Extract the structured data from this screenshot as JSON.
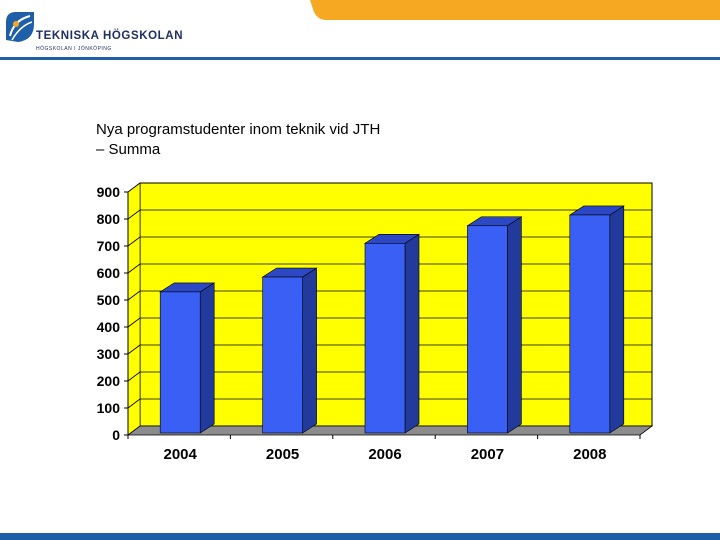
{
  "header": {
    "logo_name": "TEKNISKA HÖGSKOLAN",
    "logo_sub": "HÖGSKOLAN I JÖNKÖPING"
  },
  "slide": {
    "title_line1": "Nya programstudenter inom teknik vid JTH",
    "title_line2": "– Summa"
  },
  "colors": {
    "bar_face": "#3a5ff5",
    "bar_side": "#223a9c",
    "bar_top": "#2d48c4",
    "plot_bg": "#ffff00",
    "floor": "#8c8c8c",
    "header_band": "#f7a823",
    "header_line": "#1f5ea8"
  },
  "chart_data": {
    "type": "bar",
    "title": "",
    "categories": [
      "2004",
      "2005",
      "2006",
      "2007",
      "2008"
    ],
    "values": [
      530,
      585,
      710,
      775,
      815
    ],
    "ylim": [
      0,
      900
    ],
    "yticks": [
      "0",
      "100",
      "200",
      "300",
      "400",
      "500",
      "600",
      "700",
      "800",
      "900"
    ],
    "xlabel": "",
    "ylabel": "",
    "grid": true
  }
}
